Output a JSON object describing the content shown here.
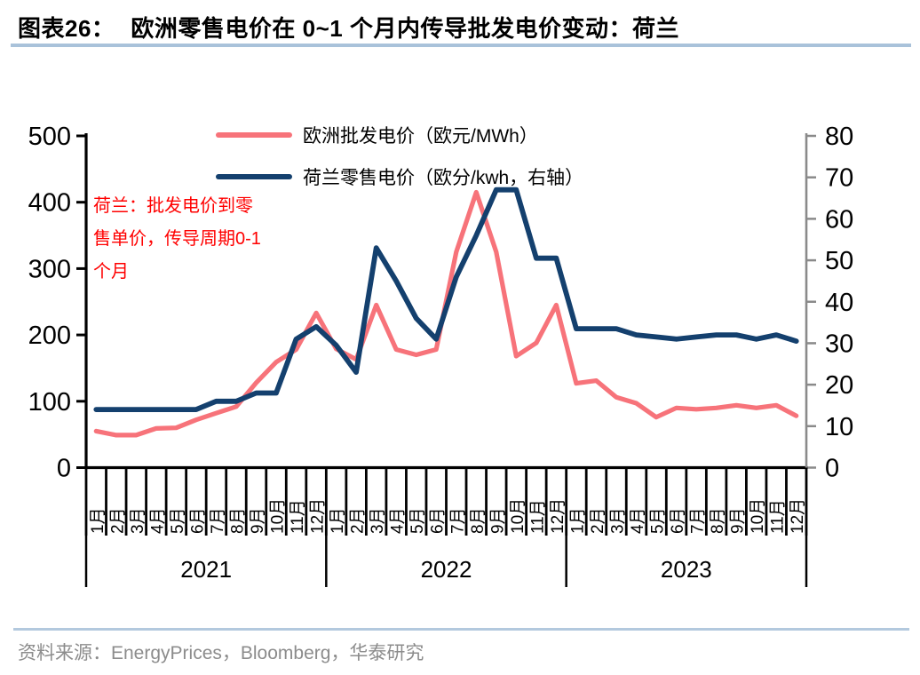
{
  "page": {
    "title_prefix": "图表26：",
    "title_text": "欧洲零售电价在 0~1 个月内传导批发电价变动：荷兰",
    "source_text": "资料来源：EnergyPrices，Bloomberg，华泰研究"
  },
  "colors": {
    "wholesale_line": "#f7737a",
    "retail_line": "#14406e",
    "annotation_text": "#ff0000",
    "header_rule": "#a9c2da",
    "footer_rule": "#b3c9de",
    "axis_black": "#000000",
    "right_axis_gray": "#8a8a8a",
    "source_text": "#8c8c8c"
  },
  "annotation": {
    "lines": [
      "荷兰：批发电价到零",
      "售单价，传导周期0-1",
      "个月"
    ]
  },
  "chart_data": {
    "type": "line",
    "title": "",
    "x_years": [
      "2021",
      "2022",
      "2023"
    ],
    "x_month_labels": [
      "1月",
      "2月",
      "3月",
      "4月",
      "5月",
      "6月",
      "7月",
      "8月",
      "9月",
      "10月",
      "11月",
      "12月"
    ],
    "left_axis": {
      "label": "欧元/MWh",
      "min": 0,
      "max": 500,
      "step": 100
    },
    "right_axis": {
      "label": "欧分/kwh",
      "min": 0,
      "max": 80,
      "step": 10
    },
    "grid": false,
    "legend_position": "top-center",
    "series": [
      {
        "name": "欧洲批发电价（欧元/MWh）",
        "axis": "left",
        "color": "#f7737a",
        "values": [
          55,
          49,
          49,
          59,
          60,
          72,
          82,
          92,
          128,
          159,
          178,
          233,
          179,
          163,
          245,
          178,
          170,
          178,
          325,
          415,
          325,
          168,
          188,
          245,
          127,
          131,
          106,
          97,
          76,
          90,
          88,
          90,
          94,
          90,
          94,
          78
        ]
      },
      {
        "name": "荷兰零售电价（欧分/kwh，右轴）",
        "axis": "right",
        "color": "#14406e",
        "values": [
          14,
          14,
          14,
          14,
          14,
          14,
          16,
          16,
          18,
          18,
          31,
          34,
          29.5,
          23,
          53,
          45,
          36,
          31,
          46,
          56,
          67,
          67,
          50.5,
          50.5,
          33.5,
          33.5,
          33.5,
          32,
          31.5,
          31,
          31.5,
          32,
          32,
          31,
          32,
          30.5
        ]
      }
    ]
  }
}
